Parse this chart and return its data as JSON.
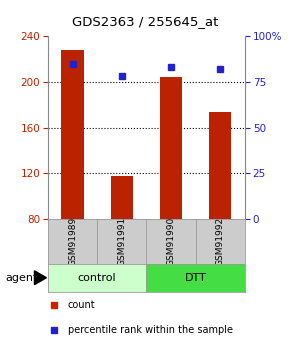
{
  "title": "GDS2363 / 255645_at",
  "samples": [
    "GSM91989",
    "GSM91991",
    "GSM91990",
    "GSM91992"
  ],
  "bar_values": [
    228,
    118,
    204,
    174
  ],
  "percentile_values": [
    85,
    78,
    83,
    82
  ],
  "y_min": 80,
  "y_max": 240,
  "y_ticks": [
    80,
    120,
    160,
    200,
    240
  ],
  "y_right_ticks": [
    0,
    25,
    50,
    75,
    100
  ],
  "bar_color": "#bb2200",
  "blue_color": "#2222cc",
  "groups": [
    {
      "label": "control",
      "span": [
        0,
        2
      ],
      "color": "#ccffcc"
    },
    {
      "label": "DTT",
      "span": [
        2,
        4
      ],
      "color": "#44dd44"
    }
  ],
  "agent_label": "agent",
  "legend_items": [
    {
      "label": "count",
      "color": "#cc2200"
    },
    {
      "label": "percentile rank within the sample",
      "color": "#2222cc"
    }
  ],
  "background_color": "#ffffff",
  "sample_box_color": "#cccccc",
  "bar_width": 0.45,
  "figsize": [
    2.9,
    3.45
  ],
  "dpi": 100
}
